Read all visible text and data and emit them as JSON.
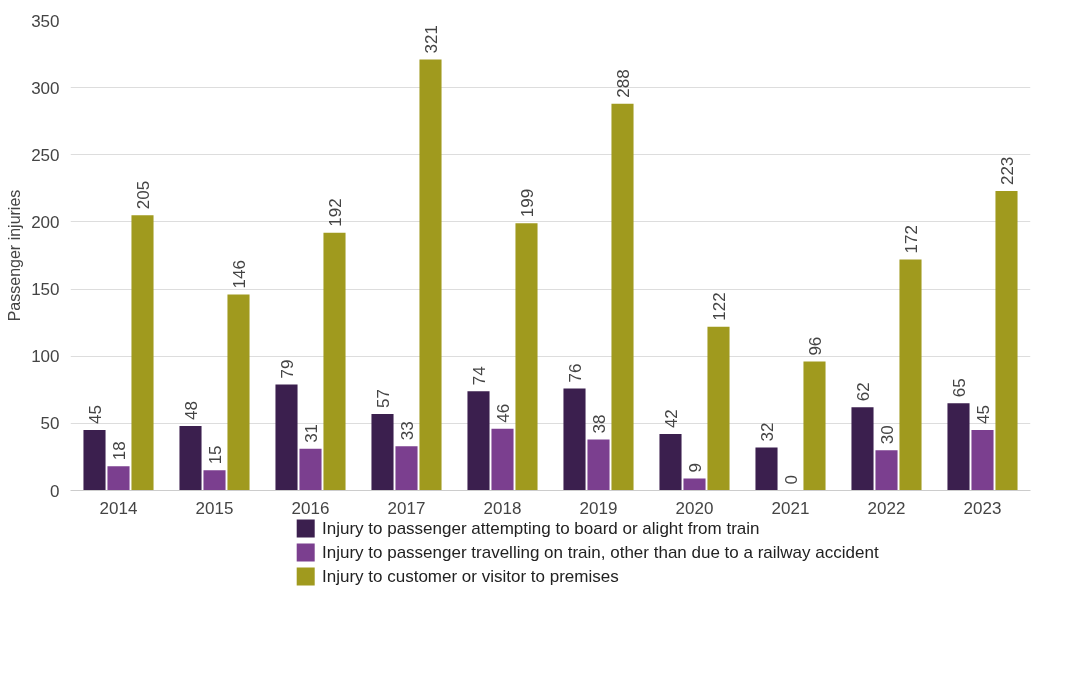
{
  "chart_data": {
    "type": "bar",
    "ylabel": "Passenger injuries",
    "categories": [
      "2014",
      "2015",
      "2016",
      "2017",
      "2018",
      "2019",
      "2020",
      "2021",
      "2022",
      "2023"
    ],
    "series": [
      {
        "name": "Injury to passenger attempting to board or alight from train",
        "color": "#3b1f4e",
        "values": [
          45,
          48,
          79,
          57,
          74,
          76,
          42,
          32,
          62,
          65
        ]
      },
      {
        "name": "Injury to passenger travelling on train, other than due to a railway accident",
        "color": "#7b3f8f",
        "values": [
          18,
          15,
          31,
          33,
          46,
          38,
          9,
          0,
          30,
          45
        ]
      },
      {
        "name": "Injury to customer or visitor to premises",
        "color": "#a09a1e",
        "values": [
          205,
          146,
          192,
          321,
          199,
          288,
          122,
          96,
          172,
          223
        ]
      }
    ],
    "ylim": [
      0,
      350
    ],
    "yticks": [
      0,
      50,
      100,
      150,
      200,
      250,
      300,
      350
    ],
    "grid": "y",
    "legend": "bottom",
    "data_labels": true
  }
}
